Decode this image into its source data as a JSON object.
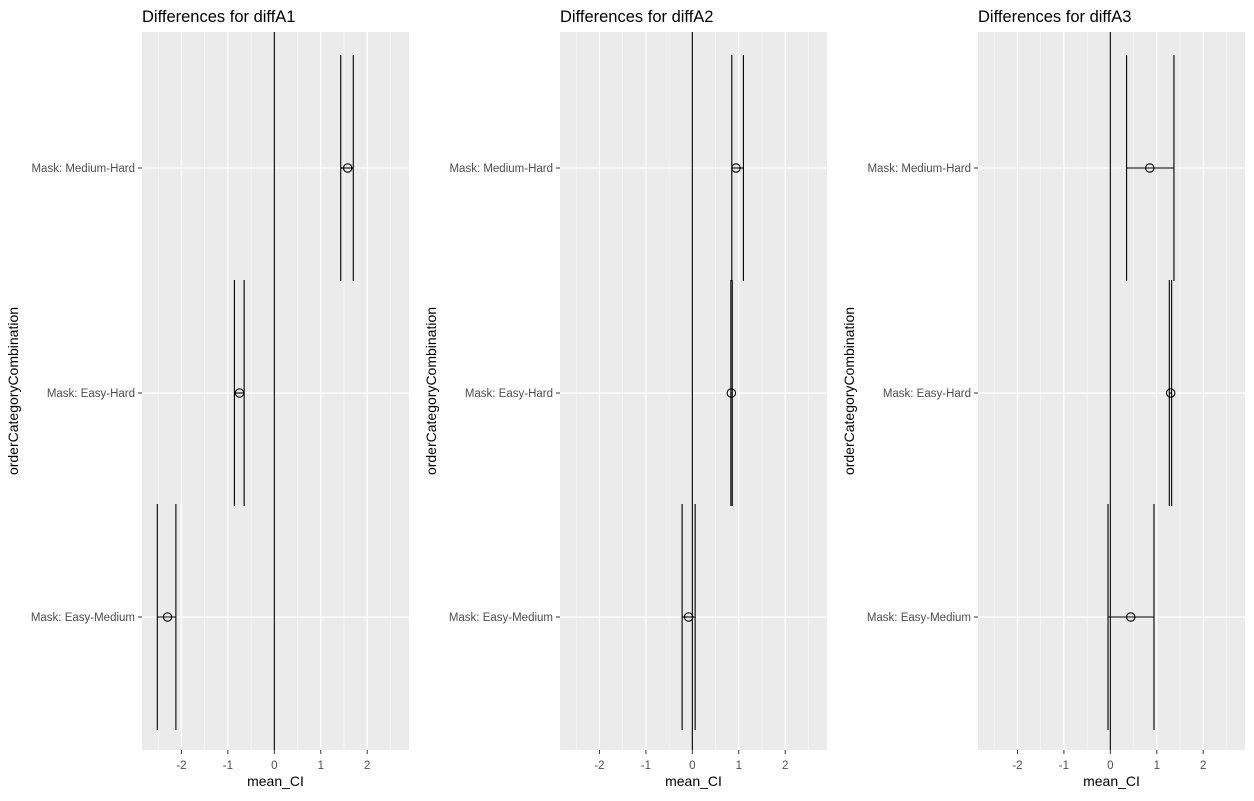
{
  "chart_data": [
    {
      "type": "errorbar",
      "title": "Differences for diffA1",
      "xlabel": "mean_CI",
      "ylabel": "orderCategoryCombination",
      "xlim": [
        -2.85,
        2.9
      ],
      "xticks": [
        -2,
        -1,
        0,
        1,
        2
      ],
      "xtick_labels": [
        "-2",
        "-1",
        "0",
        "1",
        "2"
      ],
      "grid": true,
      "reference_line_x": 0,
      "categories": [
        "Mask: Medium-Hard",
        "Mask: Easy-Hard",
        "Mask: Easy-Medium"
      ],
      "points": [
        {
          "category": "Mask: Medium-Hard",
          "mean": 1.58,
          "lower": 1.43,
          "upper": 1.7
        },
        {
          "category": "Mask: Easy-Hard",
          "mean": -0.75,
          "lower": -0.86,
          "upper": -0.65
        },
        {
          "category": "Mask: Easy-Medium",
          "mean": -2.3,
          "lower": -2.52,
          "upper": -2.12
        }
      ]
    },
    {
      "type": "errorbar",
      "title": "Differences for diffA2",
      "xlabel": "mean_CI",
      "ylabel": "orderCategoryCombination",
      "xlim": [
        -2.85,
        2.9
      ],
      "xticks": [
        -2,
        -1,
        0,
        1,
        2
      ],
      "xtick_labels": [
        "-2",
        "-1",
        "0",
        "1",
        "2"
      ],
      "grid": true,
      "reference_line_x": 0,
      "categories": [
        "Mask: Medium-Hard",
        "Mask: Easy-Hard",
        "Mask: Easy-Medium"
      ],
      "points": [
        {
          "category": "Mask: Medium-Hard",
          "mean": 0.94,
          "lower": 0.85,
          "upper": 1.1
        },
        {
          "category": "Mask: Easy-Hard",
          "mean": 0.84,
          "lower": 0.83,
          "upper": 0.86
        },
        {
          "category": "Mask: Easy-Medium",
          "mean": -0.08,
          "lower": -0.22,
          "upper": 0.06
        }
      ]
    },
    {
      "type": "errorbar",
      "title": "Differences for diffA3",
      "xlabel": "mean_CI",
      "ylabel": "orderCategoryCombination",
      "xlim": [
        -2.85,
        2.9
      ],
      "xticks": [
        -2,
        -1,
        0,
        1,
        2
      ],
      "xtick_labels": [
        "-2",
        "-1",
        "0",
        "1",
        "2"
      ],
      "grid": true,
      "reference_line_x": 0,
      "categories": [
        "Mask: Medium-Hard",
        "Mask: Easy-Hard",
        "Mask: Easy-Medium"
      ],
      "points": [
        {
          "category": "Mask: Medium-Hard",
          "mean": 0.85,
          "lower": 0.35,
          "upper": 1.37
        },
        {
          "category": "Mask: Easy-Hard",
          "mean": 1.3,
          "lower": 1.27,
          "upper": 1.32
        },
        {
          "category": "Mask: Easy-Medium",
          "mean": 0.44,
          "lower": -0.05,
          "upper": 0.94
        }
      ]
    }
  ],
  "colors": {
    "panel_background": "#ebebeb",
    "grid_major": "#ffffff",
    "ink": "#000000",
    "tick_text": "#4d4d4d",
    "tick_mark": "#333333"
  }
}
